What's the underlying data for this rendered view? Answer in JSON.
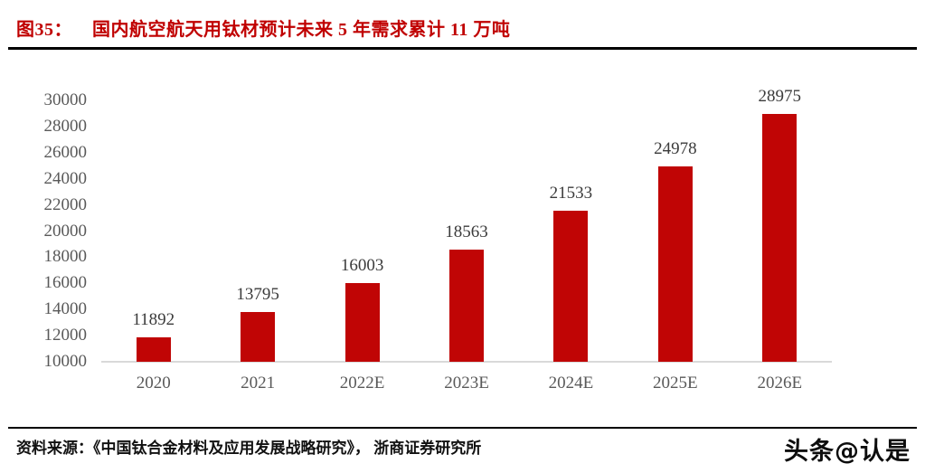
{
  "header": {
    "figure_label": "图35：",
    "title": "国内航空航天用钛材预计未来 5 年需求累计 11 万吨"
  },
  "footer": {
    "source": "资料来源：《中国钛合金材料及应用发展战略研究》， 浙商证券研究所",
    "watermark": "头条@认是"
  },
  "colors": {
    "title_red": "#C00000",
    "bar_red": "#C00505",
    "axis_text_gray": "#595959",
    "value_text": "#3b3b3b",
    "baseline_gray": "#D9D9D9",
    "rule_black": "#000000"
  },
  "chart_data": {
    "type": "bar",
    "title": "国内航空航天用钛材预计未来 5 年需求累计 11 万吨",
    "categories": [
      "2020",
      "2021",
      "2022E",
      "2023E",
      "2024E",
      "2025E",
      "2026E"
    ],
    "values": [
      11892,
      13795,
      16003,
      18563,
      21533,
      24978,
      28975
    ],
    "xlabel": "",
    "ylabel": "",
    "ylim": [
      10000,
      30000
    ],
    "ytick_step": 2000,
    "grid": false,
    "legend": "none",
    "bar_color": "#C00505"
  }
}
